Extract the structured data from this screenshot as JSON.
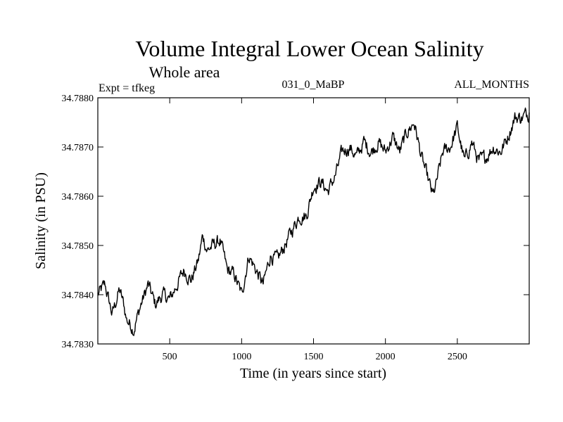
{
  "chart_data": {
    "type": "line",
    "title": "Volume Integral Lower Ocean Salinity",
    "subtitle": "Whole area",
    "header_left": "Expt = tfkeg",
    "header_center": "031_0_MaBP",
    "header_right": "ALL_MONTHS",
    "xlabel": "Time (in years since start)",
    "ylabel": "Salinity (in PSU)",
    "xlim": [
      0,
      3000
    ],
    "ylim": [
      34.783,
      34.788
    ],
    "x_ticks": [
      500,
      1000,
      1500,
      2000,
      2500
    ],
    "x_tick_labels": [
      "500",
      "1000",
      "1500",
      "2000",
      "2500"
    ],
    "y_ticks": [
      34.783,
      34.784,
      34.785,
      34.786,
      34.787,
      34.788
    ],
    "y_tick_labels": [
      "34.7830",
      "34.7840",
      "34.7850",
      "34.7860",
      "34.7870",
      "34.7880"
    ],
    "grid": false,
    "color": "#000000",
    "series": [
      {
        "x": [
          0,
          50,
          100,
          150,
          180,
          200,
          250,
          300,
          350,
          400,
          450,
          500,
          550,
          600,
          650,
          700,
          730,
          760,
          800,
          850,
          900,
          950,
          1000,
          1050,
          1100,
          1150,
          1200,
          1250,
          1300,
          1350,
          1400,
          1450,
          1500,
          1550,
          1600,
          1650,
          1700,
          1750,
          1800,
          1850,
          1900,
          1950,
          2000,
          2050,
          2100,
          2150,
          2200,
          2250,
          2300,
          2330,
          2350,
          2400,
          2450,
          2500,
          2550,
          2600,
          2650,
          2700,
          2750,
          2800,
          2850,
          2900,
          2950,
          3000
        ],
        "y": [
          34.784,
          34.7842,
          34.7836,
          34.7841,
          34.7838,
          34.7835,
          34.7833,
          34.7838,
          34.7842,
          34.7838,
          34.784,
          34.7839,
          34.7842,
          34.7845,
          34.7843,
          34.7847,
          34.7852,
          34.7849,
          34.785,
          34.7851,
          34.7845,
          34.7844,
          34.784,
          34.7848,
          34.7845,
          34.7842,
          34.7848,
          34.7847,
          34.785,
          34.7853,
          34.7856,
          34.7856,
          34.7862,
          34.7863,
          34.7861,
          34.7864,
          34.7869,
          34.787,
          34.7868,
          34.7871,
          34.7869,
          34.7871,
          34.7869,
          34.7872,
          34.7869,
          34.7873,
          34.7875,
          34.7868,
          34.7863,
          34.786,
          34.7862,
          34.7869,
          34.787,
          34.7874,
          34.7867,
          34.7871,
          34.7867,
          34.7868,
          34.787,
          34.7869,
          34.7872,
          34.7876,
          34.7876,
          34.7877
        ]
      }
    ]
  }
}
